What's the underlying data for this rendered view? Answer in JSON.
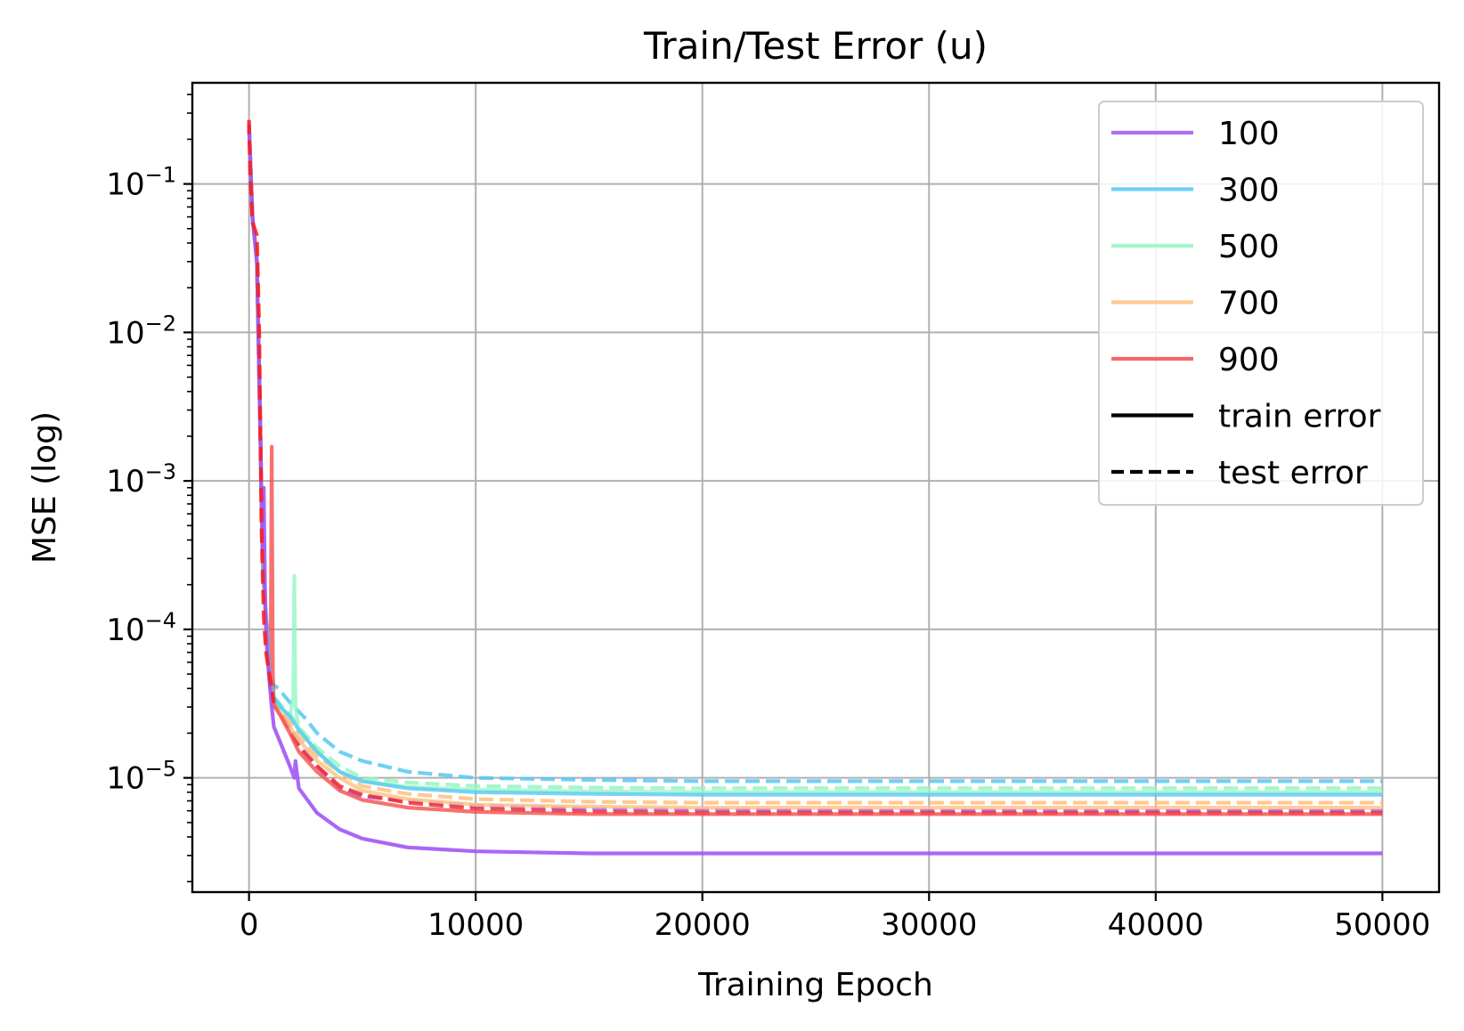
{
  "chart_data": {
    "type": "line",
    "title": "Train/Test Error (u)",
    "xlabel": "Training Epoch",
    "ylabel": "MSE (log)",
    "yscale": "log",
    "xlim": [
      -2500,
      52500
    ],
    "ylim": [
      1.7e-06,
      0.48
    ],
    "grid": true,
    "legend_position": "top-right",
    "x_ticks": [
      {
        "value": 0,
        "label": "0"
      },
      {
        "value": 10000,
        "label": "10000"
      },
      {
        "value": 20000,
        "label": "20000"
      },
      {
        "value": 30000,
        "label": "30000"
      },
      {
        "value": 40000,
        "label": "40000"
      },
      {
        "value": 50000,
        "label": "50000"
      }
    ],
    "y_ticks": [
      {
        "value": 0.1,
        "base": "10",
        "exp": "−1"
      },
      {
        "value": 0.01,
        "base": "10",
        "exp": "−2"
      },
      {
        "value": 0.001,
        "base": "10",
        "exp": "−3"
      },
      {
        "value": 0.0001,
        "base": "10",
        "exp": "−4"
      },
      {
        "value": 1e-05,
        "base": "10",
        "exp": "−5"
      }
    ],
    "legend_entries": [
      {
        "label": "100",
        "color": "#a155f5",
        "dash": "solid"
      },
      {
        "label": "300",
        "color": "#56c8f5",
        "dash": "solid"
      },
      {
        "label": "500",
        "color": "#96f5c3",
        "dash": "solid"
      },
      {
        "label": "700",
        "color": "#ffc080",
        "dash": "solid"
      },
      {
        "label": "900",
        "color": "#f54d4d",
        "dash": "solid"
      },
      {
        "label": "train error",
        "color": "#000000",
        "dash": "solid"
      },
      {
        "label": "test error",
        "color": "#000000",
        "dash": "dashed"
      }
    ],
    "series": [
      {
        "name": "100",
        "kind": "test",
        "color": "#a155f5",
        "opacity": 0.85,
        "dashed": true,
        "x": [
          0,
          150,
          350,
          500,
          600,
          700,
          800,
          900,
          1000,
          1100,
          1400,
          1800,
          2200,
          3000,
          4000,
          5000,
          7000,
          10000,
          15000,
          20000,
          30000,
          40000,
          50000
        ],
        "y": [
          0.25,
          0.06,
          0.03,
          0.002,
          0.0003,
          0.00015,
          0.0001,
          5e-05,
          4e-05,
          3.2e-05,
          2.8e-05,
          2.2e-05,
          1.7e-05,
          1.2e-05,
          8.5e-06,
          7.5e-06,
          7e-06,
          6.5e-06,
          6.2e-06,
          6.1e-06,
          6e-06,
          6e-06,
          6e-06
        ]
      },
      {
        "name": "300",
        "kind": "test",
        "color": "#56c8f5",
        "opacity": 0.85,
        "dashed": true,
        "x": [
          0,
          150,
          350,
          500,
          600,
          700,
          800,
          900,
          1000,
          1100,
          1300,
          1600,
          2000,
          2500,
          3000,
          4000,
          5000,
          7000,
          10000,
          15000,
          20000,
          30000,
          40000,
          50000
        ],
        "y": [
          0.25,
          0.06,
          0.03,
          0.002,
          0.0003,
          0.00015,
          0.0001,
          5e-05,
          4.5e-05,
          4.2e-05,
          4e-05,
          3.5e-05,
          3e-05,
          2.5e-05,
          2e-05,
          1.5e-05,
          1.3e-05,
          1.1e-05,
          1e-05,
          9.7e-06,
          9.5e-06,
          9.5e-06,
          9.5e-06,
          9.5e-06
        ]
      },
      {
        "name": "500",
        "kind": "test",
        "color": "#96f5c3",
        "opacity": 0.85,
        "dashed": true,
        "x": [
          0,
          150,
          350,
          500,
          600,
          700,
          800,
          900,
          1000,
          1100,
          1400,
          1800,
          2200,
          3000,
          4000,
          5000,
          7000,
          10000,
          15000,
          20000,
          30000,
          40000,
          50000
        ],
        "y": [
          0.25,
          0.06,
          0.03,
          0.002,
          0.0003,
          0.00015,
          0.0001,
          5e-05,
          4e-05,
          3.5e-05,
          3.1e-05,
          2.7e-05,
          2.2e-05,
          1.6e-05,
          1.2e-05,
          1e-05,
          9.3e-06,
          8.8e-06,
          8.6e-06,
          8.5e-06,
          8.5e-06,
          8.5e-06,
          8.5e-06
        ]
      },
      {
        "name": "700",
        "kind": "test",
        "color": "#ffc080",
        "opacity": 0.85,
        "dashed": true,
        "x": [
          0,
          150,
          350,
          500,
          600,
          700,
          800,
          900,
          1000,
          1100,
          1400,
          1800,
          2200,
          3000,
          4000,
          5000,
          7000,
          10000,
          15000,
          20000,
          30000,
          40000,
          50000
        ],
        "y": [
          0.25,
          0.06,
          0.03,
          0.002,
          0.0003,
          0.00015,
          0.0001,
          5e-05,
          4e-05,
          3.3e-05,
          2.9e-05,
          2.4e-05,
          1.9e-05,
          1.4e-05,
          1.1e-05,
          8.8e-06,
          7.8e-06,
          7.2e-06,
          6.9e-06,
          6.8e-06,
          6.8e-06,
          6.8e-06,
          6.8e-06
        ]
      },
      {
        "name": "900",
        "kind": "test",
        "color": "#f03030",
        "opacity": 0.85,
        "dashed": true,
        "x": [
          0,
          150,
          350,
          500,
          600,
          700,
          800,
          900,
          1000,
          1100,
          1400,
          1800,
          2200,
          3000,
          4000,
          5000,
          7000,
          10000,
          15000,
          20000,
          30000,
          40000,
          50000
        ],
        "y": [
          0.25,
          0.06,
          0.03,
          0.002,
          0.0003,
          0.00015,
          0.0001,
          5e-05,
          4e-05,
          3.2e-05,
          2.7e-05,
          2.1e-05,
          1.6e-05,
          1.2e-05,
          8.8e-06,
          7.7e-06,
          6.8e-06,
          6.2e-06,
          5.9e-06,
          5.8e-06,
          5.8e-06,
          5.8e-06,
          5.8e-06
        ]
      },
      {
        "name": "500",
        "kind": "train",
        "color": "#96f5c3",
        "opacity": 0.8,
        "dashed": false,
        "x": [
          0,
          150,
          350,
          500,
          600,
          700,
          800,
          900,
          1000,
          1100,
          1400,
          1800,
          1950,
          2000,
          2050,
          2200,
          3000,
          4000,
          5000,
          7000,
          10000,
          15000,
          20000,
          30000,
          40000,
          50000
        ],
        "y": [
          0.25,
          0.06,
          0.03,
          0.002,
          0.0003,
          0.00015,
          0.0001,
          5e-05,
          4e-05,
          3.3e-05,
          2.9e-05,
          2.6e-05,
          3.5e-05,
          0.00023,
          3e-05,
          2.1e-05,
          1.5e-05,
          1.1e-05,
          9.5e-06,
          8.7e-06,
          8.3e-06,
          8.1e-06,
          8e-06,
          8e-06,
          8e-06,
          8e-06
        ]
      },
      {
        "name": "700",
        "kind": "train",
        "color": "#ffc080",
        "opacity": 0.8,
        "dashed": false,
        "x": [
          0,
          150,
          350,
          500,
          600,
          700,
          800,
          900,
          1000,
          1100,
          1400,
          1800,
          2200,
          3000,
          4000,
          5000,
          7000,
          10000,
          15000,
          20000,
          30000,
          40000,
          50000
        ],
        "y": [
          0.25,
          0.06,
          0.03,
          0.002,
          0.0003,
          0.00015,
          0.0001,
          5e-05,
          4e-05,
          3e-05,
          2.7e-05,
          2.2e-05,
          1.8e-05,
          1.3e-05,
          1e-05,
          8.2e-06,
          7.2e-06,
          6.6e-06,
          6.4e-06,
          6.3e-06,
          6.3e-06,
          6.3e-06,
          6.3e-06
        ]
      },
      {
        "name": "900",
        "kind": "train",
        "color": "#f54d4d",
        "opacity": 0.8,
        "dashed": false,
        "x": [
          0,
          150,
          350,
          500,
          600,
          700,
          800,
          900,
          950,
          1000,
          1050,
          1100,
          1400,
          1800,
          2200,
          3000,
          4000,
          5000,
          7000,
          10000,
          15000,
          20000,
          30000,
          40000,
          50000
        ],
        "y": [
          0.25,
          0.06,
          0.03,
          0.002,
          0.0003,
          0.00015,
          0.0001,
          5e-05,
          4e-05,
          0.0017,
          5e-05,
          3.1e-05,
          2.6e-05,
          2e-05,
          1.5e-05,
          1.1e-05,
          8.2e-06,
          7.1e-06,
          6.3e-06,
          5.9e-06,
          5.7e-06,
          5.7e-06,
          5.7e-06,
          5.7e-06,
          5.7e-06
        ]
      },
      {
        "name": "300",
        "kind": "train",
        "color": "#56c8f5",
        "opacity": 0.8,
        "dashed": false,
        "x": [
          0,
          150,
          350,
          500,
          600,
          700,
          800,
          900,
          1000,
          1100,
          1400,
          1800,
          2200,
          3000,
          4000,
          5000,
          7000,
          10000,
          15000,
          20000,
          30000,
          40000,
          50000
        ],
        "y": [
          0.25,
          0.06,
          0.03,
          0.002,
          0.0003,
          0.00015,
          0.0001,
          5e-05,
          4e-05,
          3.5e-05,
          3e-05,
          2.6e-05,
          2.1e-05,
          1.5e-05,
          1.1e-05,
          9.5e-06,
          8.5e-06,
          8e-06,
          7.8e-06,
          7.7e-06,
          7.7e-06,
          7.7e-06,
          7.7e-06
        ]
      },
      {
        "name": "100",
        "kind": "train",
        "color": "#a155f5",
        "opacity": 0.9,
        "dashed": false,
        "x": [
          0,
          150,
          350,
          500,
          600,
          650,
          700,
          750,
          800,
          900,
          1000,
          1100,
          1400,
          1800,
          2000,
          2050,
          2200,
          3000,
          4000,
          5000,
          7000,
          10000,
          15000,
          20000,
          30000,
          40000,
          50000
        ],
        "y": [
          0.25,
          0.06,
          0.03,
          0.002,
          0.0003,
          0.0009,
          0.0002,
          0.0001,
          7e-05,
          4.5e-05,
          3e-05,
          2.2e-05,
          1.7e-05,
          1.2e-05,
          1e-05,
          1.3e-05,
          8.5e-06,
          5.8e-06,
          4.5e-06,
          3.9e-06,
          3.4e-06,
          3.2e-06,
          3.1e-06,
          3.1e-06,
          3.1e-06,
          3.1e-06,
          3.1e-06
        ]
      },
      {
        "name": "900",
        "kind": "test",
        "color": "#ff1a1a",
        "opacity": 0.85,
        "dashed": true,
        "x": [
          0,
          50,
          150,
          250,
          350,
          450,
          550,
          650,
          750,
          900,
          1000,
          1100
        ],
        "y": [
          0.27,
          0.12,
          0.055,
          0.05,
          0.045,
          0.01,
          0.0005,
          0.00012,
          7e-05,
          5e-05,
          4e-05,
          3.2e-05
        ]
      }
    ]
  }
}
